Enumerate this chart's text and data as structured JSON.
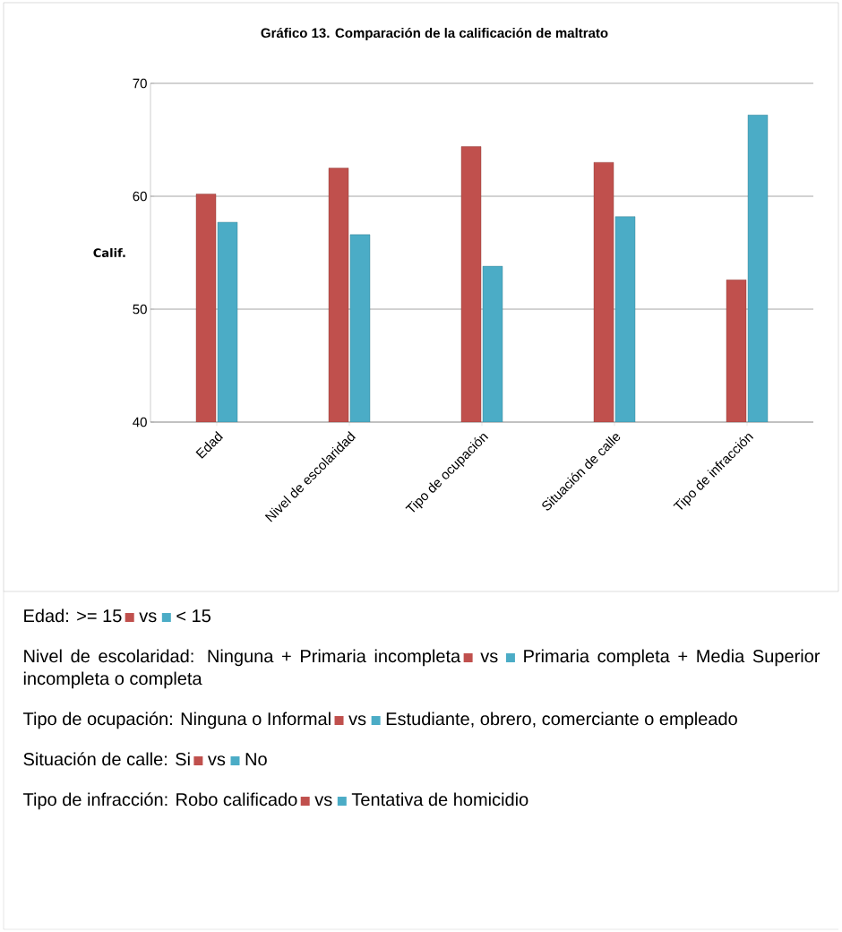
{
  "chart_data": {
    "type": "bar",
    "title": "Gráfico 13. Comparación de la calificación  de maltrato",
    "ylabel": "Calif.",
    "categories": [
      "Edad",
      "Nivel de escolaridad",
      "Tipo de ocupación",
      "Situación de calle",
      "Tipo de infracción"
    ],
    "series": [
      {
        "color": "#c0504d",
        "values": [
          60.2,
          62.5,
          64.4,
          63.0,
          52.6
        ]
      },
      {
        "color": "#4bacc6",
        "values": [
          57.7,
          56.6,
          53.8,
          58.2,
          67.2
        ]
      }
    ],
    "ylim": [
      40,
      70
    ],
    "yticks": [
      40,
      50,
      60,
      70
    ],
    "grid": "y",
    "annotations": [
      "Edad: >= 15",
      "vs",
      "< 15",
      "Nivel de escolaridad: Ninguna + Primaria incompleta",
      "vs",
      "Primaria completa + Media Superior incompleta o completa",
      "Tipo de ocupación: Ninguna o Informal",
      "vs",
      "Estudiante, obrero, comerciante o empleado",
      "Situación de calle: Si",
      "vs",
      "No",
      "Tipo de infracción: Robo calificado",
      "vs",
      "Tentativa de homicidio"
    ]
  }
}
